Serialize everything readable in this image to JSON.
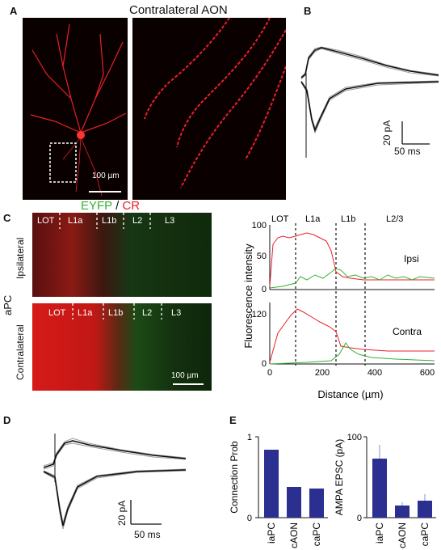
{
  "panelA": {
    "letter": "A",
    "title": "Contralateral AON",
    "scalebar": "100 µm"
  },
  "panelB": {
    "letter": "B",
    "scalebar_y": "20 pA",
    "scalebar_x": "50 ms"
  },
  "panelC": {
    "letter": "C",
    "stain_green": "EYFP",
    "stain_sep": " / ",
    "stain_red": "CR",
    "region": "aPC",
    "row_ipsi": "Ipsilateral",
    "row_contra": "Contralateral",
    "layers_ipsi": [
      "LOT",
      "L1a",
      "L1b",
      "L2",
      "L3"
    ],
    "layers_contra": [
      "LOT",
      "L1a",
      "L1b",
      "L2",
      "L3"
    ],
    "scalebar": "100 µm",
    "profile_layers": [
      "LOT",
      "L1a",
      "L1b",
      "L2/3"
    ],
    "ylabel": "Fluorescence  intensity",
    "xlabel": "Distance (µm)",
    "xticks": [
      "0",
      "200",
      "400",
      "600"
    ],
    "ipsi_yticks": [
      "0",
      "50",
      "100"
    ],
    "contra_yticks": [
      "0",
      "120"
    ],
    "ipsi_label": "Ipsi",
    "contra_label": "Contra"
  },
  "panelD": {
    "letter": "D",
    "scalebar_y": "20 pA",
    "scalebar_x": "50 ms"
  },
  "panelE": {
    "letter": "E",
    "chart_data": [
      {
        "type": "bar",
        "categories": [
          "iaPC",
          "cAON",
          "caPC"
        ],
        "values": [
          0.84,
          0.38,
          0.36
        ],
        "ylabel": "Connection Prob",
        "ylim": [
          0,
          1
        ],
        "yticks": [
          "0",
          "1"
        ],
        "color": "#2b2f8f"
      },
      {
        "type": "bar",
        "categories": [
          "iaPC",
          "cAON",
          "caPC"
        ],
        "values": [
          73,
          15,
          21
        ],
        "errors": [
          17,
          4,
          8
        ],
        "ylabel": "AMPA EPSC (pA)",
        "ylim": [
          0,
          100
        ],
        "yticks": [
          "0",
          "100"
        ],
        "color": "#2b2f8f"
      }
    ]
  },
  "colors": {
    "red": "#e8202a",
    "green": "#33b234",
    "bar": "#2b2f8f"
  }
}
